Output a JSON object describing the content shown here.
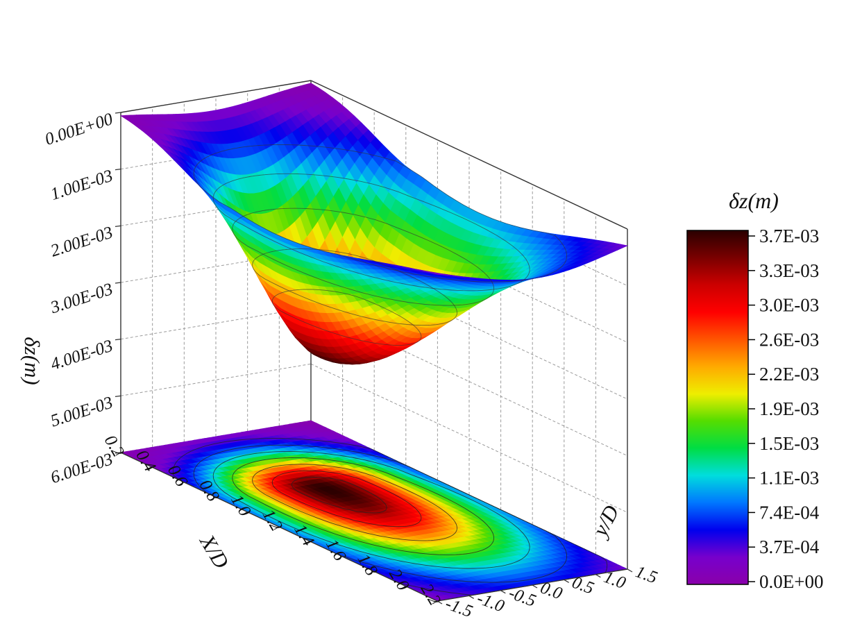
{
  "chart_data": {
    "type": "surface3d",
    "title": "",
    "xlabel": "X/D",
    "ylabel": "y/D",
    "zlabel": "δz(m)",
    "x_ticks": [
      "0.2",
      "0.4",
      "0.6",
      "0.8",
      "1.0",
      "1.2",
      "1.4",
      "1.6",
      "1.8",
      "2.0",
      "2.2"
    ],
    "y_ticks": [
      "-1.5",
      "-1.0",
      "-0.5",
      "0.0",
      "0.5",
      "1.0",
      "1.5"
    ],
    "z_ticks": [
      "0.00E+00",
      "1.00E-03",
      "2.00E-03",
      "3.00E-03",
      "4.00E-03",
      "5.00E-03",
      "6.00E-03"
    ],
    "xlim": [
      0.2,
      2.2
    ],
    "ylim": [
      -1.5,
      1.5
    ],
    "zlim": [
      0,
      0.006
    ],
    "z_axis_reversed": true,
    "projection": "surface with contour map on base plane",
    "grid": true,
    "peak": {
      "x": 0.9,
      "y": 0.0,
      "z": 0.0037
    },
    "colorbar": {
      "title": "δz(m)",
      "ticks": [
        "3.7E-03",
        "3.3E-03",
        "3.0E-03",
        "2.6E-03",
        "2.2E-03",
        "1.9E-03",
        "1.5E-03",
        "1.1E-03",
        "7.4E-04",
        "3.7E-04",
        "0.0E+00"
      ],
      "range": [
        0,
        0.0037
      ],
      "colors": [
        "#2a0000",
        "#7a0000",
        "#cc0000",
        "#ff0000",
        "#ff5500",
        "#ffaa00",
        "#eeee00",
        "#55dd00",
        "#00dd44",
        "#00dddd",
        "#0077ff",
        "#0000ee",
        "#7700cc",
        "#8a00aa"
      ]
    }
  }
}
